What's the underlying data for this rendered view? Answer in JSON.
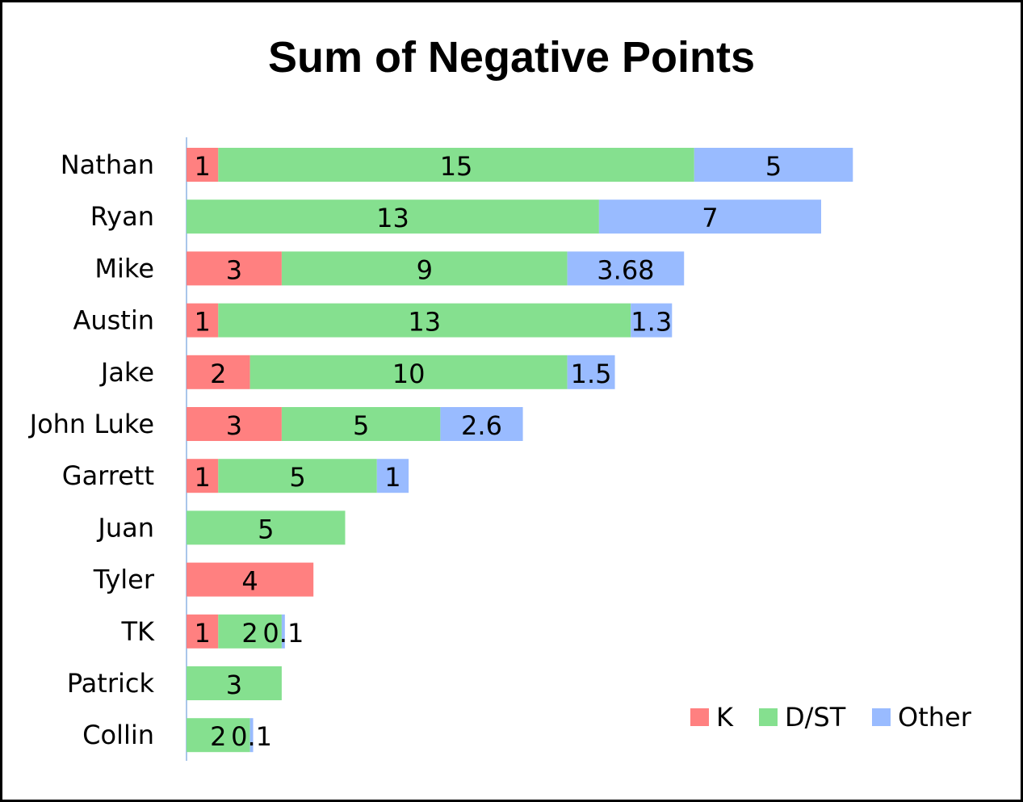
{
  "chart_data": {
    "type": "bar",
    "orientation": "horizontal",
    "stacked": true,
    "title": "Sum of Negative Points",
    "categories": [
      "Nathan",
      "Ryan",
      "Mike",
      "Austin",
      "Jake",
      "John Luke",
      "Garrett",
      "Juan",
      "Tyler",
      "TK",
      "Patrick",
      "Collin"
    ],
    "series": [
      {
        "name": "K",
        "color": "#ff8080",
        "values": [
          1,
          0,
          3,
          1,
          2,
          3,
          1,
          0,
          4,
          1,
          0,
          0
        ]
      },
      {
        "name": "D/ST",
        "color": "#85e08f",
        "values": [
          15,
          13,
          9,
          13,
          10,
          5,
          5,
          5,
          0,
          2,
          3,
          2
        ]
      },
      {
        "name": "Other",
        "color": "#99bbff",
        "values": [
          5,
          7,
          3.68,
          1.3,
          1.5,
          2.6,
          1,
          0,
          0,
          0.1,
          0,
          0.1
        ]
      }
    ],
    "xlim": [
      0,
      22
    ],
    "grid": false,
    "legend_position": "bottom-right",
    "xlabel": "",
    "ylabel": ""
  }
}
